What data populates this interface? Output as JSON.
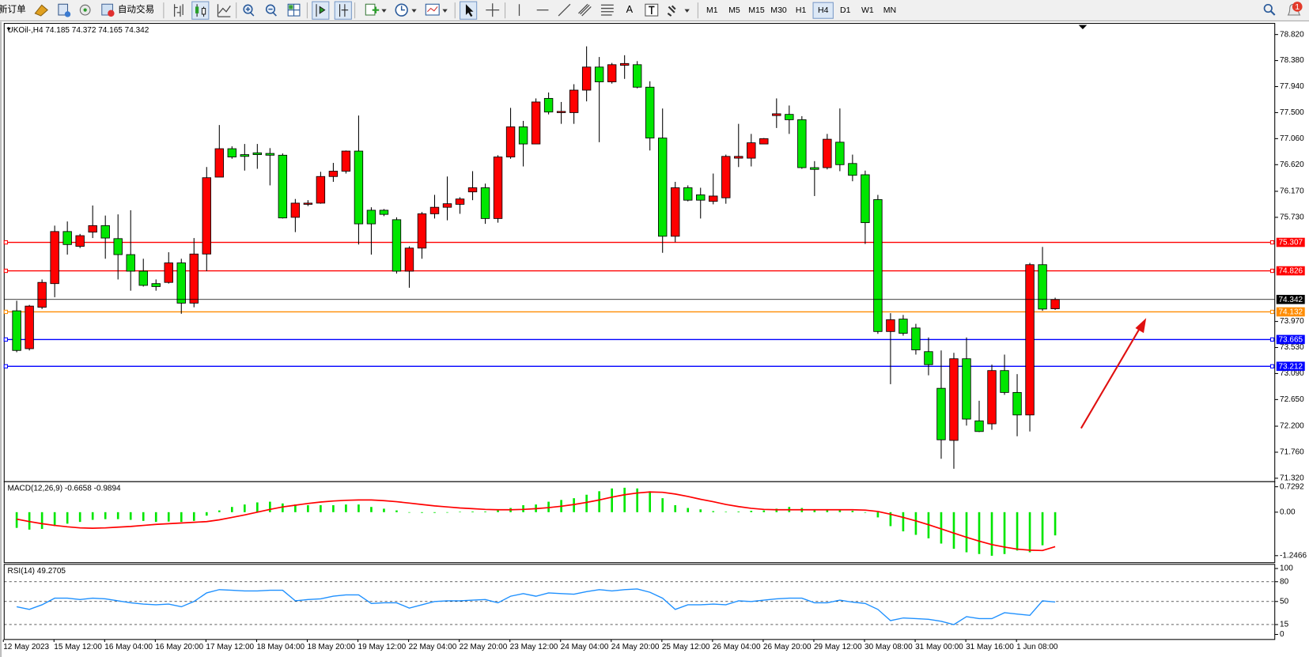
{
  "toolbar": {
    "new_order": "新订单",
    "auto_trading": "自动交易",
    "text_tool": "A",
    "timeframes": [
      "M1",
      "M5",
      "M15",
      "M30",
      "H1",
      "H4",
      "D1",
      "W1",
      "MN"
    ],
    "active_timeframe": "H4",
    "notifications": 1
  },
  "chart_data": [
    {
      "type": "candlestick",
      "title": "UKOil-,H4",
      "up_color": "#ff0000",
      "down_color": "#00e600",
      "categories": [
        "12 May 2023",
        null,
        null,
        null,
        "15 May 12:00",
        null,
        null,
        null,
        "16 May 04:00",
        null,
        null,
        null,
        "16 May 20:00",
        null,
        null,
        null,
        "17 May 12:00",
        null,
        null,
        null,
        "18 May 04:00",
        null,
        null,
        null,
        "18 May 20:00",
        null,
        null,
        null,
        "19 May 12:00",
        null,
        null,
        null,
        "22 May 04:00",
        null,
        null,
        null,
        "22 May 20:00",
        null,
        null,
        null,
        "23 May 12:00",
        null,
        null,
        null,
        "24 May 04:00",
        null,
        null,
        null,
        "24 May 20:00",
        null,
        null,
        null,
        "25 May 12:00",
        null,
        null,
        null,
        "26 May 04:00",
        null,
        null,
        null,
        "26 May 20:00",
        null,
        null,
        null,
        "29 May 12:00",
        null,
        null,
        null,
        "30 May 08:00",
        null,
        null,
        null,
        "31 May 00:00",
        null,
        null,
        null,
        "31 May 16:00",
        null,
        null,
        null,
        "1 Jun 08:00",
        null,
        null
      ],
      "open": [
        74.15,
        73.51,
        74.21,
        74.61,
        75.49,
        75.24,
        75.48,
        75.59,
        75.37,
        75.1,
        74.82,
        74.61,
        74.63,
        74.96,
        74.28,
        75.11,
        76.41,
        76.89,
        76.79,
        76.82,
        76.81,
        76.78,
        75.73,
        75.95,
        75.97,
        76.42,
        76.51,
        76.85,
        75.85,
        75.85,
        75.69,
        74.82,
        75.21,
        75.79,
        75.9,
        75.95,
        76.16,
        76.23,
        75.71,
        76.75,
        77.26,
        76.97,
        77.74,
        77.5,
        77.5,
        77.88,
        78.27,
        78.02,
        78.3,
        78.31,
        77.93,
        77.07,
        75.41,
        76.23,
        76.11,
        76.0,
        76.06,
        76.73,
        76.73,
        76.97,
        77.45,
        77.47,
        77.38,
        76.57,
        76.57,
        77.0,
        76.64,
        76.45,
        76.03,
        73.8,
        74.01,
        73.86,
        73.46,
        72.84,
        71.96,
        73.34,
        72.29,
        72.24,
        73.14,
        72.77,
        72.39,
        74.93,
        74.185
      ],
      "high": [
        74.32,
        74.25,
        74.68,
        75.59,
        75.66,
        75.45,
        75.93,
        75.76,
        75.78,
        75.85,
        75.03,
        74.68,
        75.14,
        75.03,
        75.38,
        76.58,
        77.29,
        76.93,
        76.97,
        76.97,
        76.9,
        76.81,
        76.04,
        76.02,
        76.5,
        76.65,
        76.86,
        77.45,
        75.9,
        75.87,
        75.73,
        75.24,
        75.82,
        76.11,
        76.42,
        76.07,
        76.51,
        76.3,
        76.78,
        77.58,
        77.36,
        77.74,
        77.84,
        77.68,
        77.98,
        78.62,
        78.44,
        78.34,
        78.47,
        78.37,
        78.03,
        77.57,
        76.33,
        76.27,
        76.23,
        76.47,
        76.79,
        77.31,
        77.14,
        77.07,
        77.74,
        77.62,
        77.44,
        76.68,
        77.14,
        77.57,
        76.79,
        76.52,
        76.11,
        74.11,
        74.08,
        73.93,
        73.7,
        73.48,
        73.44,
        73.7,
        72.63,
        73.24,
        73.41,
        73.08,
        74.96,
        75.23,
        74.372
      ],
      "low": [
        73.45,
        73.48,
        74.18,
        74.38,
        75.1,
        75.21,
        75.38,
        75.03,
        74.68,
        74.49,
        74.56,
        74.49,
        74.61,
        74.1,
        74.21,
        74.82,
        76.41,
        76.72,
        76.52,
        76.55,
        76.27,
        75.71,
        75.48,
        75.92,
        75.96,
        76.33,
        76.47,
        75.27,
        75.1,
        75.75,
        74.78,
        74.54,
        75.03,
        75.71,
        75.68,
        75.79,
        76.02,
        75.62,
        75.64,
        76.72,
        76.59,
        76.97,
        77.47,
        77.31,
        77.31,
        77.69,
        77.0,
        77.99,
        78.07,
        77.91,
        76.86,
        75.13,
        75.31,
        76.0,
        75.71,
        75.95,
        75.96,
        76.58,
        76.59,
        76.97,
        77.24,
        77.14,
        76.55,
        76.09,
        76.54,
        76.51,
        76.34,
        75.28,
        73.76,
        72.91,
        73.73,
        73.41,
        73.06,
        71.65,
        71.48,
        72.21,
        72.1,
        72.14,
        72.73,
        72.03,
        72.11,
        74.15,
        74.165
      ],
      "close": [
        73.48,
        74.23,
        74.63,
        75.49,
        75.27,
        75.42,
        75.59,
        75.38,
        75.1,
        74.82,
        74.58,
        74.56,
        74.96,
        74.28,
        75.11,
        76.4,
        76.89,
        76.75,
        76.76,
        76.79,
        76.78,
        75.72,
        75.97,
        75.97,
        76.42,
        76.51,
        76.85,
        75.62,
        75.62,
        75.78,
        74.82,
        75.21,
        75.79,
        75.9,
        75.96,
        76.04,
        76.23,
        75.71,
        76.75,
        77.26,
        76.97,
        77.68,
        77.51,
        77.52,
        77.88,
        78.27,
        78.02,
        78.31,
        78.33,
        77.93,
        77.07,
        75.41,
        76.23,
        76.02,
        76.02,
        76.09,
        76.76,
        76.76,
        76.99,
        77.06,
        77.48,
        77.38,
        76.57,
        76.54,
        77.05,
        76.62,
        76.44,
        75.64,
        73.8,
        74.0,
        73.77,
        73.49,
        73.24,
        71.97,
        73.34,
        72.32,
        72.11,
        73.14,
        72.77,
        72.39,
        74.93,
        74.18,
        74.342
      ],
      "ylim": [
        71.29,
        78.98
      ],
      "yticks": [
        {
          "value": 78.82,
          "label": "78.820"
        },
        {
          "value": 78.38,
          "label": "78.380"
        },
        {
          "value": 77.94,
          "label": "77.940"
        },
        {
          "value": 77.5,
          "label": "77.500"
        },
        {
          "value": 77.06,
          "label": "77.060"
        },
        {
          "value": 76.62,
          "label": "76.620"
        },
        {
          "value": 76.17,
          "label": "76.170"
        },
        {
          "value": 75.73,
          "label": "75.730"
        },
        {
          "value": 73.97,
          "label": "73.970"
        },
        {
          "value": 73.53,
          "label": "73.530"
        },
        {
          "value": 73.09,
          "label": "73.090"
        },
        {
          "value": 72.65,
          "label": "72.650"
        },
        {
          "value": 72.2,
          "label": "72.200"
        },
        {
          "value": 71.76,
          "label": "71.760"
        },
        {
          "value": 71.32,
          "label": "71.320"
        }
      ],
      "levels": [
        {
          "value": 75.307,
          "color": "#ff0000"
        },
        {
          "value": 74.826,
          "color": "#ff0000"
        },
        {
          "value": 74.132,
          "color": "#ff8c00"
        },
        {
          "value": 73.665,
          "color": "#0000ff"
        },
        {
          "value": 73.212,
          "color": "#0000ff"
        }
      ],
      "price_line_color": "#000000"
    },
    {
      "type": "macd",
      "title": "MACD(12,26,9)",
      "histogram": {
        "color": "#00e600",
        "values": [
          -0.45,
          -0.5,
          -0.48,
          -0.4,
          -0.33,
          -0.28,
          -0.22,
          -0.2,
          -0.2,
          -0.22,
          -0.25,
          -0.28,
          -0.27,
          -0.28,
          -0.25,
          -0.1,
          0.05,
          0.15,
          0.22,
          0.28,
          0.3,
          0.25,
          0.22,
          0.2,
          0.2,
          0.2,
          0.22,
          0.22,
          0.15,
          0.1,
          0.05,
          0.0,
          -0.02,
          -0.02,
          0.0,
          0.01,
          0.02,
          0.02,
          0.05,
          0.12,
          0.2,
          0.22,
          0.3,
          0.35,
          0.4,
          0.5,
          0.6,
          0.68,
          0.7,
          0.68,
          0.6,
          0.4,
          0.2,
          0.12,
          0.08,
          0.03,
          0.01,
          0.02,
          0.04,
          0.05,
          0.1,
          0.15,
          0.12,
          0.08,
          0.07,
          0.08,
          0.04,
          0.0,
          -0.15,
          -0.4,
          -0.55,
          -0.65,
          -0.75,
          -0.9,
          -1.05,
          -1.15,
          -1.2,
          -1.25,
          -1.2,
          -1.1,
          -1.15,
          -0.95,
          -0.6658
        ]
      },
      "signal": {
        "color": "#ff0000",
        "values": [
          -0.2,
          -0.27,
          -0.33,
          -0.38,
          -0.42,
          -0.45,
          -0.46,
          -0.45,
          -0.43,
          -0.41,
          -0.38,
          -0.35,
          -0.33,
          -0.31,
          -0.29,
          -0.27,
          -0.22,
          -0.15,
          -0.08,
          0.0,
          0.08,
          0.15,
          0.2,
          0.25,
          0.29,
          0.32,
          0.34,
          0.35,
          0.35,
          0.33,
          0.3,
          0.26,
          0.22,
          0.18,
          0.15,
          0.12,
          0.1,
          0.08,
          0.07,
          0.07,
          0.08,
          0.1,
          0.13,
          0.17,
          0.22,
          0.28,
          0.35,
          0.43,
          0.5,
          0.55,
          0.58,
          0.57,
          0.52,
          0.45,
          0.37,
          0.3,
          0.22,
          0.16,
          0.11,
          0.08,
          0.07,
          0.07,
          0.07,
          0.07,
          0.07,
          0.07,
          0.07,
          0.06,
          0.02,
          -0.06,
          -0.15,
          -0.25,
          -0.36,
          -0.48,
          -0.6,
          -0.72,
          -0.83,
          -0.93,
          -1.0,
          -1.06,
          -1.09,
          -1.1,
          -0.9894
        ]
      },
      "ylim": [
        -1.4,
        0.85
      ],
      "yticks": [
        0.7292,
        {
          "value": 0,
          "label": "0.00"
        },
        -1.2466
      ]
    },
    {
      "type": "line",
      "title": "RSI(14)",
      "color": "#1e90ff",
      "values": [
        42,
        38,
        45,
        55,
        55,
        53,
        55,
        54,
        51,
        48,
        46,
        45,
        46,
        42,
        50,
        63,
        68,
        67,
        66,
        66,
        67,
        67,
        51,
        53,
        54,
        58,
        60,
        60,
        47,
        48,
        48,
        40,
        45,
        50,
        51,
        51,
        52,
        53,
        48,
        58,
        62,
        58,
        63,
        62,
        61,
        65,
        68,
        66,
        68,
        69,
        64,
        55,
        38,
        45,
        45,
        46,
        45,
        51,
        50,
        52,
        54,
        55,
        55,
        48,
        48,
        52,
        49,
        47,
        38,
        21,
        25,
        24,
        23,
        20,
        15,
        27,
        24,
        24,
        33,
        31,
        29,
        51,
        49.2705
      ],
      "ylim": [
        0,
        100
      ],
      "yticks": [
        100,
        80,
        50,
        15,
        0
      ]
    }
  ]
}
